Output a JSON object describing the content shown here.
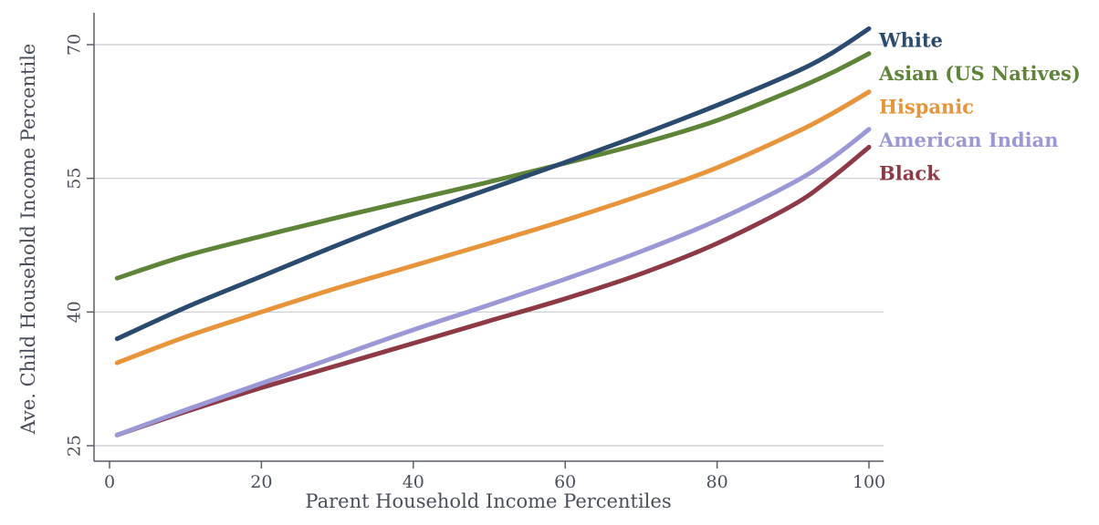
{
  "chart_data": {
    "type": "line",
    "title": "",
    "xlabel": "Parent Household Income Percentiles",
    "ylabel": "Ave. Child Household Income Percentile",
    "xlim": [
      0,
      100
    ],
    "ylim": [
      25,
      72
    ],
    "xticks": [
      0,
      20,
      40,
      60,
      80,
      100
    ],
    "yticks": [
      25,
      40,
      55,
      70
    ],
    "grid": true,
    "legend": "right",
    "x": [
      1,
      10,
      20,
      30,
      40,
      50,
      60,
      70,
      80,
      90,
      95,
      100
    ],
    "series": [
      {
        "name": "White",
        "color": "#2a4a6e",
        "values": [
          37.0,
          40.5,
          44.0,
          47.5,
          50.8,
          53.8,
          56.8,
          59.9,
          63.2,
          66.8,
          69.0,
          71.8
        ]
      },
      {
        "name": "Asian (US Natives)",
        "color": "#5e8438",
        "values": [
          43.8,
          46.3,
          48.5,
          50.6,
          52.6,
          54.6,
          56.7,
          58.9,
          61.5,
          64.9,
          66.8,
          69.0
        ]
      },
      {
        "name": "Hispanic",
        "color": "#e8943a",
        "values": [
          34.3,
          37.2,
          40.0,
          42.7,
          45.2,
          47.7,
          50.3,
          53.1,
          56.2,
          60.0,
          62.2,
          64.7
        ]
      },
      {
        "name": "American Indian",
        "color": "#9b98d6",
        "values": [
          26.2,
          29.0,
          32.0,
          35.0,
          38.0,
          40.8,
          43.7,
          46.8,
          50.3,
          54.5,
          57.2,
          60.5
        ]
      },
      {
        "name": "Black",
        "color": "#8e3a46",
        "values": [
          26.2,
          28.8,
          31.5,
          34.0,
          36.5,
          39.0,
          41.5,
          44.3,
          47.7,
          52.0,
          55.0,
          58.5
        ]
      }
    ]
  }
}
